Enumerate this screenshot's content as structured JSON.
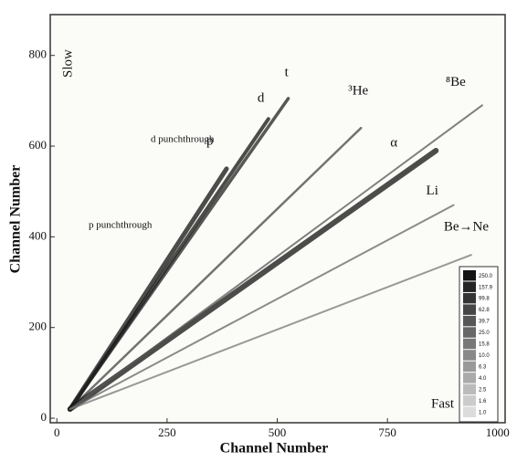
{
  "chart_data": {
    "type": "line",
    "x_label": "Channel Number",
    "y_label": "Channel Number",
    "xlim": [
      -15,
      1017
    ],
    "ylim": [
      -10,
      890
    ],
    "xticks": [
      0,
      250,
      500,
      750,
      1000
    ],
    "yticks": [
      0,
      200,
      400,
      600,
      800
    ],
    "annotations": [
      "Slow",
      "Fast",
      "d punchthrough",
      "p punchthrough"
    ],
    "series": [
      {
        "name": "p",
        "color": "#111111",
        "x": [
          30,
          385
        ],
        "values": [
          20,
          550
        ]
      },
      {
        "name": "d",
        "color": "#111111",
        "x": [
          30,
          480
        ],
        "values": [
          20,
          660
        ]
      },
      {
        "name": "t",
        "color": "#222222",
        "x": [
          30,
          525
        ],
        "values": [
          20,
          705
        ]
      },
      {
        "name": "³He",
        "color": "#444444",
        "x": [
          30,
          690
        ],
        "values": [
          20,
          640
        ]
      },
      {
        "name": "α",
        "color": "#111111",
        "x": [
          30,
          860
        ],
        "values": [
          20,
          590
        ]
      },
      {
        "name": "⁸Be",
        "color": "#555555",
        "x": [
          30,
          965
        ],
        "values": [
          20,
          690
        ]
      },
      {
        "name": "Li",
        "color": "#666666",
        "x": [
          30,
          900
        ],
        "values": [
          20,
          470
        ]
      },
      {
        "name": "Be→Ne",
        "color": "#777777",
        "x": [
          30,
          940
        ],
        "values": [
          20,
          360
        ]
      }
    ],
    "colorbar": [
      {
        "value": 250,
        "label": "250.0"
      },
      {
        "value": 157.9,
        "label": "157.9"
      },
      {
        "value": 99.8,
        "label": "99.8"
      },
      {
        "value": 62.8,
        "label": "62.8"
      },
      {
        "value": 39.7,
        "label": "39.7"
      },
      {
        "value": 25,
        "label": "25.0"
      },
      {
        "value": 15.8,
        "label": "15.8"
      },
      {
        "value": 10,
        "label": "10.0"
      },
      {
        "value": 6.3,
        "label": "6.3"
      },
      {
        "value": 4,
        "label": "4.0"
      },
      {
        "value": 2.5,
        "label": "2.5"
      },
      {
        "value": 1.6,
        "label": "1.6"
      },
      {
        "value": 1,
        "label": "1.0"
      }
    ]
  }
}
